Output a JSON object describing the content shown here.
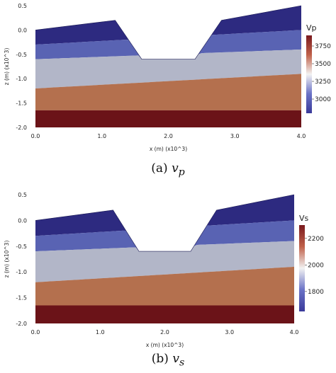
{
  "figure": {
    "subfigures": [
      {
        "caption_label": "(a)",
        "caption_var": "v",
        "caption_sub": "p",
        "colorbar": {
          "title": "Vp",
          "ticks": [
            3000,
            3250,
            3500,
            3750
          ],
          "range": [
            2800,
            3900
          ]
        },
        "chart_data": {
          "type": "heatmap",
          "xlabel": "x (m) (x10^3)",
          "ylabel": "z (m) (x10^3)",
          "x_ticks": [
            "0.0",
            "1.0",
            "2.0",
            "3.0",
            "4.0"
          ],
          "y_ticks": [
            "0.5",
            "0.0",
            "-0.5",
            "-1.0",
            "-1.5",
            "-2.0"
          ],
          "xlim": [
            0,
            4
          ],
          "ylim": [
            -2,
            0.5
          ],
          "surface": [
            [
              0,
              0
            ],
            [
              1.2,
              0.2
            ],
            [
              1.6,
              -0.6
            ],
            [
              2.4,
              -0.6
            ],
            [
              2.8,
              0.2
            ],
            [
              4.0,
              0.5
            ]
          ],
          "layers": [
            {
              "value": 2900,
              "color": "#2d2a80",
              "left_bottom": -0.3,
              "right_bottom": 0.0
            },
            {
              "value": 3100,
              "color": "#5963b3",
              "left_bottom": -0.6,
              "right_bottom": -0.4
            },
            {
              "value": 3400,
              "color": "#b2b6c8",
              "left_bottom": -1.2,
              "right_bottom": -0.9
            },
            {
              "value": 3700,
              "color": "#b4704e",
              "left_bottom": -1.65,
              "right_bottom": -1.65
            },
            {
              "value": 3850,
              "color": "#6b1318",
              "left_bottom": -2.0,
              "right_bottom": -2.0
            }
          ]
        }
      },
      {
        "caption_label": "(b)",
        "caption_var": "v",
        "caption_sub": "s",
        "colorbar": {
          "title": "Vs",
          "ticks": [
            1800,
            2000,
            2200
          ],
          "range": [
            1650,
            2300
          ]
        },
        "chart_data": {
          "type": "heatmap",
          "xlabel": "x (m) (x10^3)",
          "ylabel": "z (m) (x10^3)",
          "x_ticks": [
            "0.0",
            "1.0",
            "2.0",
            "3.0",
            "4.0"
          ],
          "y_ticks": [
            "0.5",
            "0.0",
            "-0.5",
            "-1.0",
            "-1.5",
            "-2.0"
          ],
          "xlim": [
            0,
            4
          ],
          "ylim": [
            -2,
            0.5
          ],
          "surface": [
            [
              0,
              0
            ],
            [
              1.2,
              0.2
            ],
            [
              1.6,
              -0.6
            ],
            [
              2.4,
              -0.6
            ],
            [
              2.8,
              0.2
            ],
            [
              4.0,
              0.5
            ]
          ],
          "layers": [
            {
              "value": 1700,
              "color": "#2d2a80",
              "left_bottom": -0.3,
              "right_bottom": 0.0
            },
            {
              "value": 1850,
              "color": "#5963b3",
              "left_bottom": -0.6,
              "right_bottom": -0.4
            },
            {
              "value": 2000,
              "color": "#b2b6c8",
              "left_bottom": -1.2,
              "right_bottom": -0.9
            },
            {
              "value": 2150,
              "color": "#b4704e",
              "left_bottom": -1.65,
              "right_bottom": -1.65
            },
            {
              "value": 2250,
              "color": "#6b1318",
              "left_bottom": -2.0,
              "right_bottom": -2.0
            }
          ]
        }
      }
    ],
    "colorbar_gradient": [
      "#3a3a9a",
      "#6a72c6",
      "#f2f2f2",
      "#c0614a",
      "#7a1a1e"
    ]
  }
}
